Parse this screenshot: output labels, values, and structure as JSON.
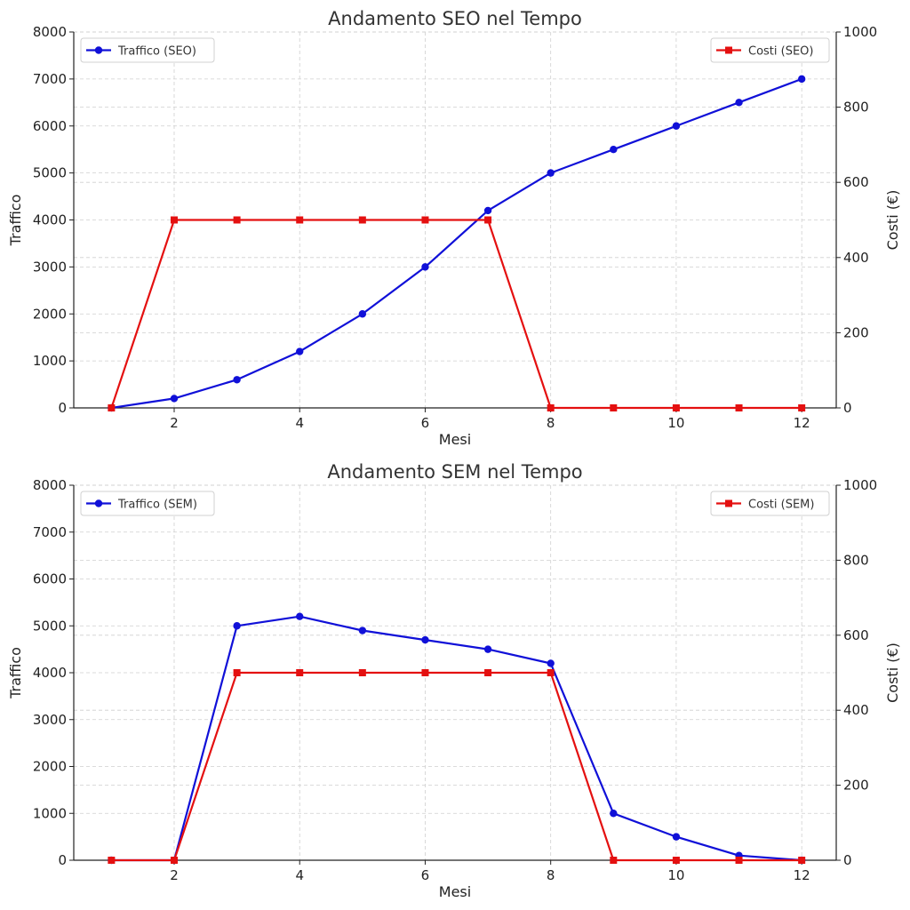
{
  "chart_data": [
    {
      "type": "line",
      "title": "Andamento SEO nel Tempo",
      "xlabel": "Mesi",
      "ylabel": "Traffico",
      "ylabel_right": "Costi (€)",
      "x": [
        1,
        2,
        3,
        4,
        5,
        6,
        7,
        8,
        9,
        10,
        11,
        12
      ],
      "xlim": [
        0.4,
        12.55
      ],
      "xticks": [
        2,
        4,
        6,
        8,
        10,
        12
      ],
      "ylim": [
        0,
        8000
      ],
      "yticks": [
        0,
        1000,
        2000,
        3000,
        4000,
        5000,
        6000,
        7000,
        8000
      ],
      "ylim_right": [
        0,
        1000
      ],
      "yticks_right": [
        0,
        200,
        400,
        600,
        800,
        1000
      ],
      "grid": true,
      "series": [
        {
          "name": "Traffico (SEO)",
          "axis": "left",
          "marker": "circle",
          "color": "#1010d8",
          "values": [
            0,
            200,
            600,
            1200,
            2000,
            3000,
            4200,
            5000,
            5500,
            6000,
            6500,
            7000
          ]
        },
        {
          "name": "Costi (SEO)",
          "axis": "right",
          "marker": "square",
          "color": "#e41010",
          "values": [
            0,
            500,
            500,
            500,
            500,
            500,
            500,
            0,
            0,
            0,
            0,
            0
          ]
        }
      ],
      "legend_left": "upper-left",
      "legend_right": "upper-right"
    },
    {
      "type": "line",
      "title": "Andamento SEM nel Tempo",
      "xlabel": "Mesi",
      "ylabel": "Traffico",
      "ylabel_right": "Costi (€)",
      "x": [
        1,
        2,
        3,
        4,
        5,
        6,
        7,
        8,
        9,
        10,
        11,
        12
      ],
      "xlim": [
        0.4,
        12.55
      ],
      "xticks": [
        2,
        4,
        6,
        8,
        10,
        12
      ],
      "ylim": [
        0,
        8000
      ],
      "yticks": [
        0,
        1000,
        2000,
        3000,
        4000,
        5000,
        6000,
        7000,
        8000
      ],
      "ylim_right": [
        0,
        1000
      ],
      "yticks_right": [
        0,
        200,
        400,
        600,
        800,
        1000
      ],
      "grid": true,
      "series": [
        {
          "name": "Traffico (SEM)",
          "axis": "left",
          "marker": "circle",
          "color": "#1010d8",
          "values": [
            0,
            0,
            5000,
            5200,
            4900,
            4700,
            4500,
            4200,
            1000,
            500,
            100,
            0
          ]
        },
        {
          "name": "Costi (SEM)",
          "axis": "right",
          "marker": "square",
          "color": "#e41010",
          "values": [
            0,
            0,
            500,
            500,
            500,
            500,
            500,
            500,
            0,
            0,
            0,
            0
          ]
        }
      ],
      "legend_left": "upper-left",
      "legend_right": "upper-right"
    }
  ]
}
